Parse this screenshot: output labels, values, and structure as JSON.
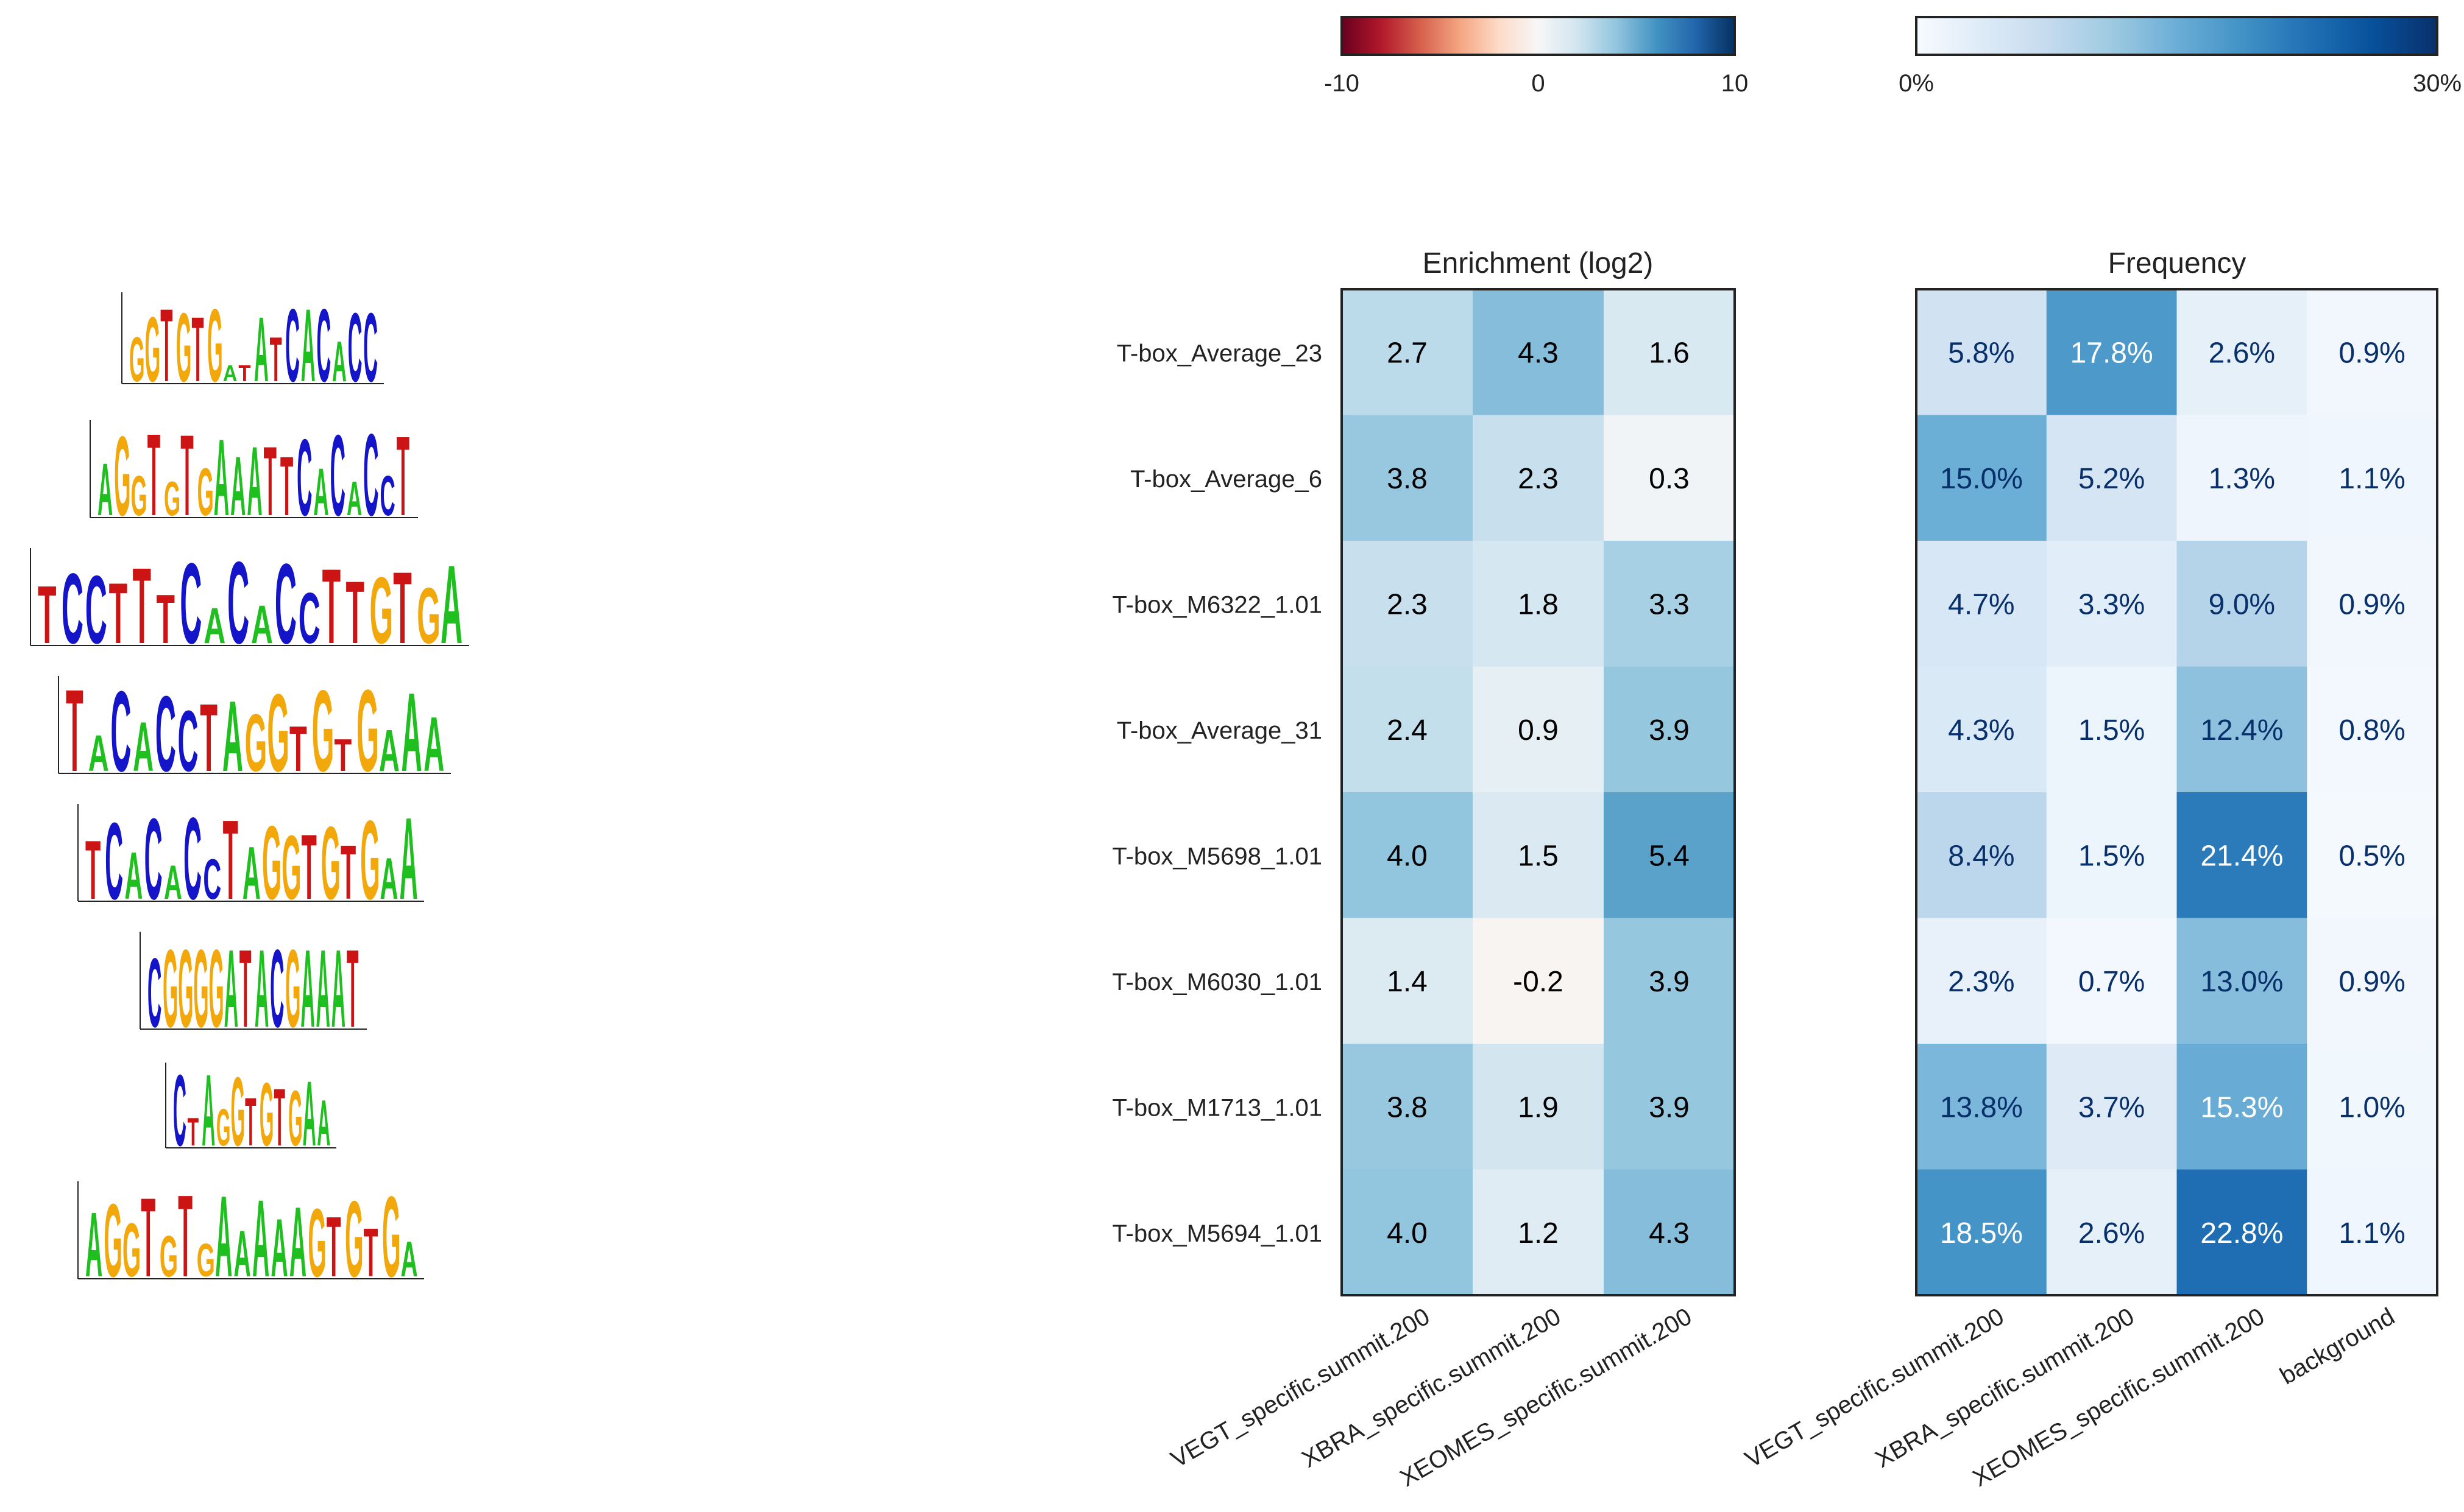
{
  "chart_data": [
    {
      "type": "heatmap",
      "title": "Enrichment (log2)",
      "rows": [
        "T-box_Average_23",
        "T-box_Average_6",
        "T-box_M6322_1.01",
        "T-box_Average_31",
        "T-box_M5698_1.01",
        "T-box_M6030_1.01",
        "T-box_M1713_1.01",
        "T-box_M5694_1.01"
      ],
      "columns": [
        "VEGT_specific.summit.200",
        "XBRA_specific.summit.200",
        "XEOMES_specific.summit.200"
      ],
      "values": [
        [
          2.7,
          4.3,
          1.6
        ],
        [
          3.8,
          2.3,
          0.3
        ],
        [
          2.3,
          1.8,
          3.3
        ],
        [
          2.4,
          0.9,
          3.9
        ],
        [
          4.0,
          1.5,
          5.4
        ],
        [
          1.4,
          -0.2,
          3.9
        ],
        [
          3.8,
          1.9,
          3.9
        ],
        [
          4.0,
          1.2,
          4.3
        ]
      ],
      "labels": [
        [
          "2.7",
          "4.3",
          "1.6"
        ],
        [
          "3.8",
          "2.3",
          "0.3"
        ],
        [
          "2.3",
          "1.8",
          "3.3"
        ],
        [
          "2.4",
          "0.9",
          "3.9"
        ],
        [
          "4.0",
          "1.5",
          "5.4"
        ],
        [
          "1.4",
          "-0.2",
          "3.9"
        ],
        [
          "3.8",
          "1.9",
          "3.9"
        ],
        [
          "4.0",
          "1.2",
          "4.3"
        ]
      ],
      "colormap": "RdBu",
      "vmin": -10,
      "vmax": 10,
      "colorbar_ticks": [
        "-10",
        "0",
        "10"
      ]
    },
    {
      "type": "heatmap",
      "title": "Frequency",
      "rows": [
        "T-box_Average_23",
        "T-box_Average_6",
        "T-box_M6322_1.01",
        "T-box_Average_31",
        "T-box_M5698_1.01",
        "T-box_M6030_1.01",
        "T-box_M1713_1.01",
        "T-box_M5694_1.01"
      ],
      "columns": [
        "VEGT_specific.summit.200",
        "XBRA_specific.summit.200",
        "XEOMES_specific.summit.200",
        "background"
      ],
      "values": [
        [
          5.8,
          17.8,
          2.6,
          0.9
        ],
        [
          15.0,
          5.2,
          1.3,
          1.1
        ],
        [
          4.7,
          3.3,
          9.0,
          0.9
        ],
        [
          4.3,
          1.5,
          12.4,
          0.8
        ],
        [
          8.4,
          1.5,
          21.4,
          0.5
        ],
        [
          2.3,
          0.7,
          13.0,
          0.9
        ],
        [
          13.8,
          3.7,
          15.3,
          1.0
        ],
        [
          18.5,
          2.6,
          22.8,
          1.1
        ]
      ],
      "labels": [
        [
          "5.8%",
          "17.8%",
          "2.6%",
          "0.9%"
        ],
        [
          "15.0%",
          "5.2%",
          "1.3%",
          "1.1%"
        ],
        [
          "4.7%",
          "3.3%",
          "9.0%",
          "0.9%"
        ],
        [
          "4.3%",
          "1.5%",
          "12.4%",
          "0.8%"
        ],
        [
          "8.4%",
          "1.5%",
          "21.4%",
          "0.5%"
        ],
        [
          "2.3%",
          "0.7%",
          "13.0%",
          "0.9%"
        ],
        [
          "13.8%",
          "3.7%",
          "15.3%",
          "1.0%"
        ],
        [
          "18.5%",
          "2.6%",
          "22.8%",
          "1.1%"
        ]
      ],
      "value_unit": "%",
      "colormap": "Blues",
      "vmin": 0,
      "vmax": 30,
      "colorbar_ticks": [
        "0%",
        "30%"
      ]
    }
  ],
  "motif_logos": [
    {
      "name": "T-box_Average_23",
      "sequence": "GGTGTGATATCACACC"
    },
    {
      "name": "T-box_Average_6",
      "sequence": "AGGTGTGAAATTCACACCT"
    },
    {
      "name": "T-box_M6322_1.01",
      "sequence": "TCCTTTCACACCTTGTGA"
    },
    {
      "name": "T-box_Average_31",
      "sequence": "TACACCTAGGTGTGAAA"
    },
    {
      "name": "T-box_M5698_1.01",
      "sequence": "TCACACCTAGGTGTGAA"
    },
    {
      "name": "T-box_M6030_1.01",
      "sequence": "CGGGGATACGAAAT"
    },
    {
      "name": "T-box_M1713_1.01",
      "sequence": "CTAGGTGTGAA"
    },
    {
      "name": "T-box_M5694_1.01",
      "sequence": "AGGTGTGAAAAAGTGTGA"
    }
  ],
  "colors": {
    "A": "#1fbf1f",
    "C": "#1414c8",
    "G": "#f2a70a",
    "T": "#cc1414",
    "frame": "#222222"
  }
}
